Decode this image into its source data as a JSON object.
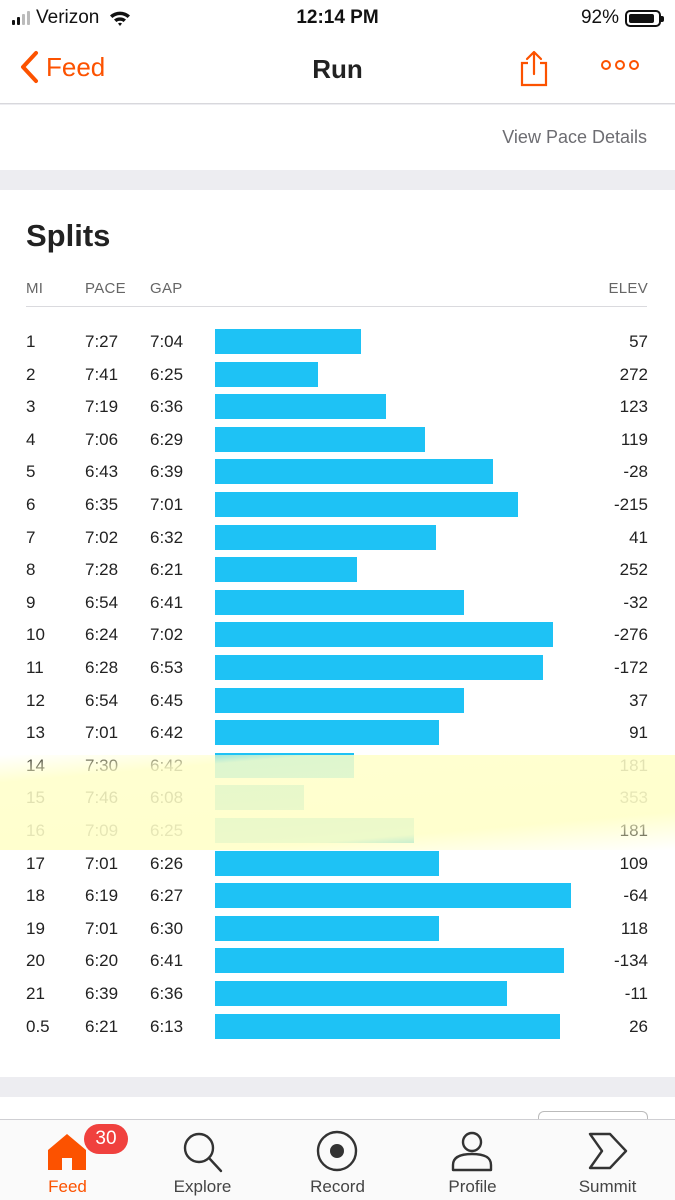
{
  "status_bar": {
    "carrier": "Verizon",
    "time": "12:14 PM",
    "battery": "92%"
  },
  "nav": {
    "back_label": "Feed",
    "title": "Run"
  },
  "pace_link": "View Pace Details",
  "splits": {
    "title": "Splits",
    "headers": {
      "mi": "MI",
      "pace": "PACE",
      "gap": "GAP",
      "elev": "ELEV"
    },
    "rows": [
      {
        "mi": "1",
        "pace": "7:27",
        "gap": "7:04",
        "elev": "57",
        "bar_fraction": 0.41
      },
      {
        "mi": "2",
        "pace": "7:41",
        "gap": "6:25",
        "elev": "272",
        "bar_fraction": 0.29
      },
      {
        "mi": "3",
        "pace": "7:19",
        "gap": "6:36",
        "elev": "123",
        "bar_fraction": 0.48
      },
      {
        "mi": "4",
        "pace": "7:06",
        "gap": "6:29",
        "elev": "119",
        "bar_fraction": 0.59
      },
      {
        "mi": "5",
        "pace": "6:43",
        "gap": "6:39",
        "elev": "-28",
        "bar_fraction": 0.78
      },
      {
        "mi": "6",
        "pace": "6:35",
        "gap": "7:01",
        "elev": "-215",
        "bar_fraction": 0.85
      },
      {
        "mi": "7",
        "pace": "7:02",
        "gap": "6:32",
        "elev": "41",
        "bar_fraction": 0.62
      },
      {
        "mi": "8",
        "pace": "7:28",
        "gap": "6:21",
        "elev": "252",
        "bar_fraction": 0.4
      },
      {
        "mi": "9",
        "pace": "6:54",
        "gap": "6:41",
        "elev": "-32",
        "bar_fraction": 0.7
      },
      {
        "mi": "10",
        "pace": "6:24",
        "gap": "7:02",
        "elev": "-276",
        "bar_fraction": 0.95
      },
      {
        "mi": "11",
        "pace": "6:28",
        "gap": "6:53",
        "elev": "-172",
        "bar_fraction": 0.92
      },
      {
        "mi": "12",
        "pace": "6:54",
        "gap": "6:45",
        "elev": "37",
        "bar_fraction": 0.7
      },
      {
        "mi": "13",
        "pace": "7:01",
        "gap": "6:42",
        "elev": "91",
        "bar_fraction": 0.63
      },
      {
        "mi": "14",
        "pace": "7:30",
        "gap": "6:42",
        "elev": "181",
        "bar_fraction": 0.39
      },
      {
        "mi": "15",
        "pace": "7:46",
        "gap": "6:08",
        "elev": "353",
        "bar_fraction": 0.25
      },
      {
        "mi": "16",
        "pace": "7:09",
        "gap": "6:25",
        "elev": "181",
        "bar_fraction": 0.56
      },
      {
        "mi": "17",
        "pace": "7:01",
        "gap": "6:26",
        "elev": "109",
        "bar_fraction": 0.63
      },
      {
        "mi": "18",
        "pace": "6:19",
        "gap": "6:27",
        "elev": "-64",
        "bar_fraction": 1.0
      },
      {
        "mi": "19",
        "pace": "7:01",
        "gap": "6:30",
        "elev": "118",
        "bar_fraction": 0.63
      },
      {
        "mi": "20",
        "pace": "6:20",
        "gap": "6:41",
        "elev": "-134",
        "bar_fraction": 0.98
      },
      {
        "mi": "21",
        "pace": "6:39",
        "gap": "6:36",
        "elev": "-11",
        "bar_fraction": 0.82
      },
      {
        "mi": "0.5",
        "pace": "6:21",
        "gap": "6:13",
        "elev": "26",
        "bar_fraction": 0.97
      }
    ]
  },
  "tabs": [
    {
      "label": "Feed",
      "icon": "home-icon",
      "active": true,
      "badge": "30"
    },
    {
      "label": "Explore",
      "icon": "search-icon",
      "active": false
    },
    {
      "label": "Record",
      "icon": "record-icon",
      "active": false
    },
    {
      "label": "Profile",
      "icon": "profile-icon",
      "active": false
    },
    {
      "label": "Summit",
      "icon": "summit-icon",
      "active": false
    }
  ],
  "colors": {
    "accent": "#fc5200",
    "bar": "#1ec2f5",
    "badge": "#f0413e"
  }
}
